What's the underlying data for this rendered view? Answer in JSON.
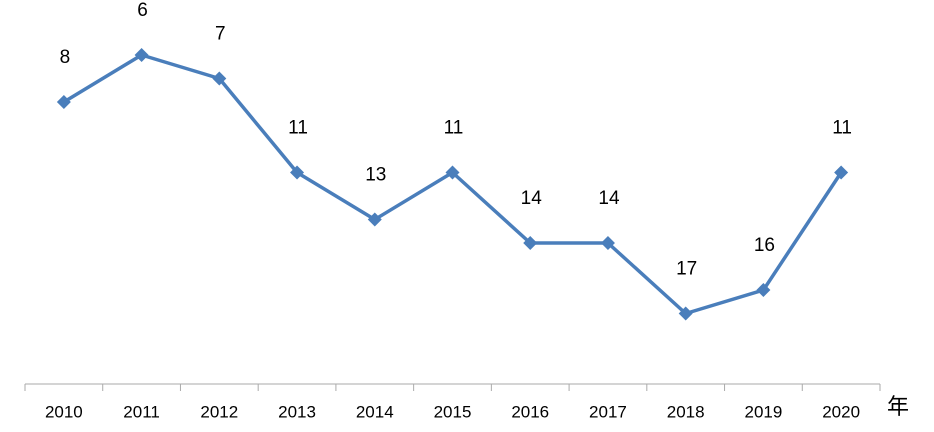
{
  "chart_data": {
    "type": "line",
    "x_axis_label": "年",
    "categories": [
      "2010",
      "2011",
      "2012",
      "2013",
      "2014",
      "2015",
      "2016",
      "2017",
      "2018",
      "2019",
      "2020"
    ],
    "values": [
      8,
      6,
      7,
      11,
      13,
      11,
      14,
      14,
      17,
      16,
      11
    ],
    "color": "#4a7ebb",
    "ylim": [
      4,
      20
    ],
    "y_reversed": true,
    "data_labels": true
  }
}
